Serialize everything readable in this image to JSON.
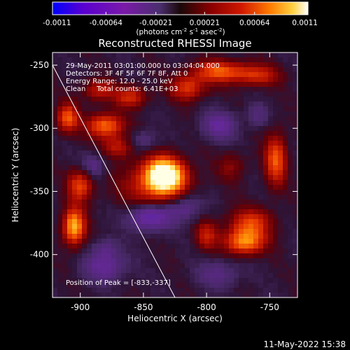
{
  "colors": {
    "background": "#000000",
    "foreground": "#ffffff",
    "colormap": [
      "#0000ff",
      "#5a00d0",
      "#7a1aa8",
      "#4a2f6e",
      "#2a0a2a",
      "#5a0000",
      "#b00000",
      "#ff3000",
      "#ff9000",
      "#ffe060",
      "#ffffff"
    ]
  },
  "colorbar": {
    "tick_labels": [
      "-0.0011",
      "-0.00064",
      "-0.00021",
      "0.00021",
      "0.00064",
      "0.0011"
    ],
    "tick_values": [
      -0.0011,
      -0.00064,
      -0.00021,
      0.00021,
      0.00064,
      0.0011
    ],
    "range": [
      -0.0011,
      0.0011
    ],
    "units_main": "(photons cm",
    "units_exp1": "-2",
    "units_mid1": " s",
    "units_exp2": "-1",
    "units_mid2": " asec",
    "units_exp3": "-2",
    "units_end": ")"
  },
  "info": {
    "line1": "29-May-2011 03:01:00.000 to 03:04:04.000",
    "line2": "Detectors: 3F 4F 5F 6F 7F 8F, Att 0",
    "line3": "Energy Range: 12.0 - 25.0 keV",
    "line4": "Clean     Total counts: 6.41E+03",
    "peak": "Position of Peak = [-833,-337]"
  },
  "footer": {
    "timestamp": "11-May-2022 15:38"
  },
  "chart_data": {
    "type": "heatmap",
    "title": "Reconstructed RHESSI Image",
    "xlabel": "Heliocentric X (arcsec)",
    "ylabel": "Heliocentric Y (arcsec)",
    "xlim": [
      -922,
      -728
    ],
    "ylim": [
      -434,
      -240
    ],
    "xticks": [
      -900,
      -850,
      -800,
      -750
    ],
    "xtick_labels": [
      "-900",
      "-850",
      "-800",
      "-750"
    ],
    "yticks": [
      -400,
      -350,
      -300,
      -250
    ],
    "ytick_labels": [
      "-400",
      "-350",
      "-300",
      "-250"
    ],
    "peak_position": [
      -833,
      -337
    ],
    "limb_line": [
      [
        -922,
        -250
      ],
      [
        -825,
        -434
      ]
    ],
    "sources": [
      {
        "x": -833,
        "y": -337,
        "peak": 1.0,
        "sx": 10,
        "sy": 9
      },
      {
        "x": -840,
        "y": -345,
        "peak": 0.45,
        "sx": 18,
        "sy": 14
      },
      {
        "x": -905,
        "y": -378,
        "peak": 0.78,
        "sx": 6,
        "sy": 10
      },
      {
        "x": -900,
        "y": -345,
        "peak": 0.5,
        "sx": 7,
        "sy": 9
      },
      {
        "x": -910,
        "y": -292,
        "peak": 0.55,
        "sx": 6,
        "sy": 8
      },
      {
        "x": -880,
        "y": -298,
        "peak": 0.6,
        "sx": 10,
        "sy": 7
      },
      {
        "x": -860,
        "y": -275,
        "peak": 0.4,
        "sx": 9,
        "sy": 6
      },
      {
        "x": -870,
        "y": -315,
        "peak": 0.35,
        "sx": 8,
        "sy": 6
      },
      {
        "x": -790,
        "y": -255,
        "peak": 0.55,
        "sx": 14,
        "sy": 6
      },
      {
        "x": -815,
        "y": -268,
        "peak": 0.45,
        "sx": 10,
        "sy": 7
      },
      {
        "x": -760,
        "y": -258,
        "peak": 0.4,
        "sx": 12,
        "sy": 6
      },
      {
        "x": -745,
        "y": -325,
        "peak": 0.55,
        "sx": 6,
        "sy": 14
      },
      {
        "x": -770,
        "y": -390,
        "peak": 0.65,
        "sx": 11,
        "sy": 7
      },
      {
        "x": -765,
        "y": -375,
        "peak": 0.45,
        "sx": 12,
        "sy": 8
      },
      {
        "x": -800,
        "y": -385,
        "peak": 0.35,
        "sx": 6,
        "sy": 8
      },
      {
        "x": -780,
        "y": -330,
        "peak": 0.2,
        "sx": 8,
        "sy": 8
      },
      {
        "x": -885,
        "y": -270,
        "peak": 0.35,
        "sx": 9,
        "sy": 6
      }
    ],
    "negative_regions": [
      {
        "x": -845,
        "y": -370,
        "peak": -0.45,
        "sx": 12,
        "sy": 8
      },
      {
        "x": -818,
        "y": -362,
        "peak": -0.3,
        "sx": 10,
        "sy": 8
      },
      {
        "x": -790,
        "y": -298,
        "peak": -0.3,
        "sx": 10,
        "sy": 8
      },
      {
        "x": -890,
        "y": -330,
        "peak": -0.25,
        "sx": 7,
        "sy": 7
      },
      {
        "x": -880,
        "y": -410,
        "peak": -0.3,
        "sx": 12,
        "sy": 8
      },
      {
        "x": -790,
        "y": -415,
        "peak": -0.2,
        "sx": 12,
        "sy": 8
      },
      {
        "x": -880,
        "y": -395,
        "peak": -0.2,
        "sx": 7,
        "sy": 6
      },
      {
        "x": -760,
        "y": -290,
        "peak": -0.18,
        "sx": 6,
        "sy": 6
      },
      {
        "x": -850,
        "y": -310,
        "peak": -0.2,
        "sx": 8,
        "sy": 6
      }
    ]
  }
}
